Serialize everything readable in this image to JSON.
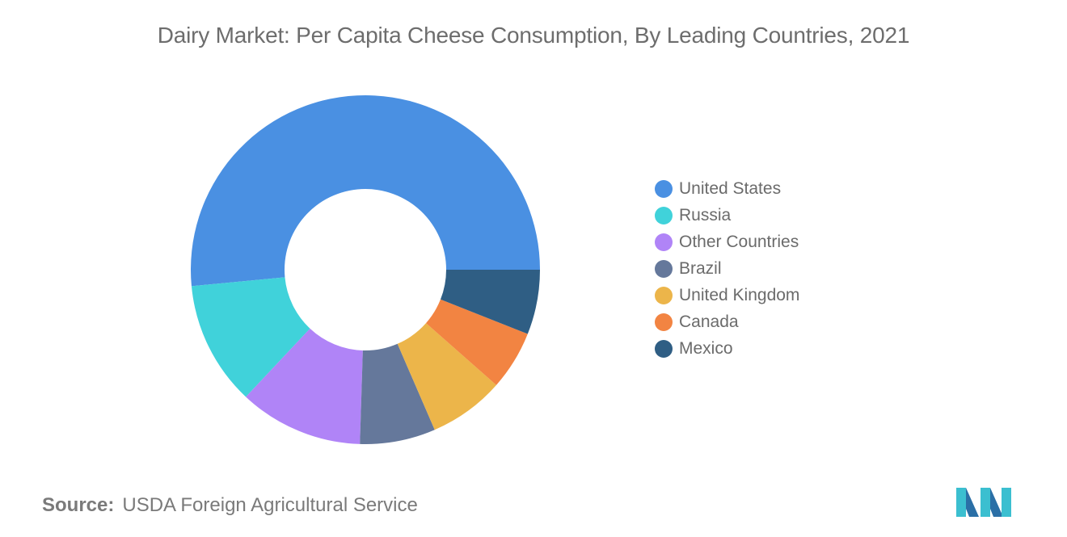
{
  "chart_data": {
    "type": "pie",
    "title": "Dairy Market: Per Capita Cheese Consumption, By Leading Countries, 2021",
    "legend_position": "right",
    "categories": [
      "United States",
      "Russia",
      "Other Countries",
      "Brazil",
      "United Kingdom",
      "Canada",
      "Mexico"
    ],
    "values": [
      51.5,
      11.5,
      11.5,
      7.0,
      7.0,
      5.5,
      6.0
    ],
    "colors": [
      "#4a90e2",
      "#40d2da",
      "#b084f7",
      "#65789b",
      "#ecb54a",
      "#f28442",
      "#2f5e84"
    ]
  },
  "source": {
    "label": "Source:",
    "text": "USDA Foreign Agricultural Service"
  }
}
